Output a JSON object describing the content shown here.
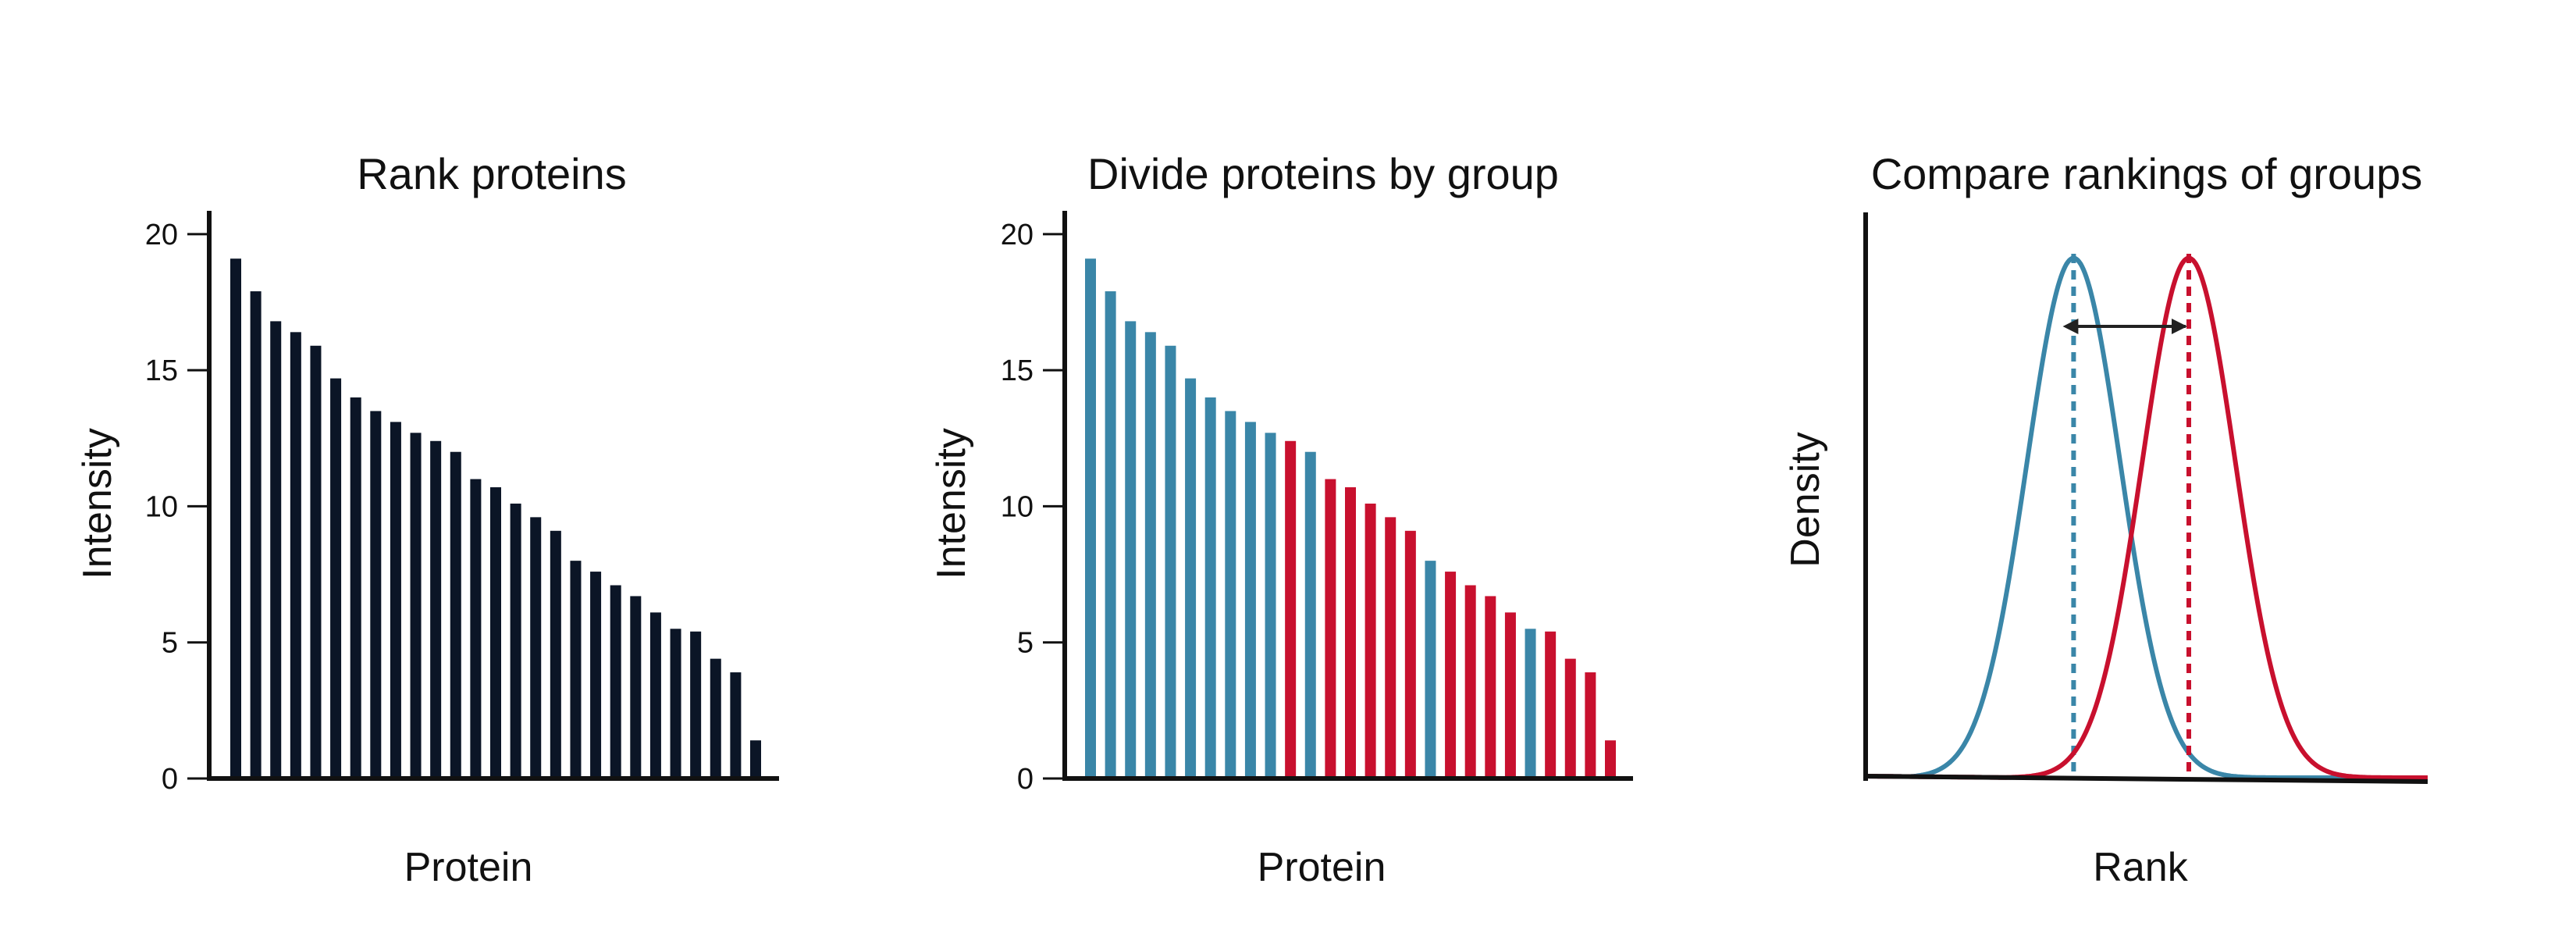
{
  "charts": [
    {
      "id": "rank",
      "title": "Rank proteins",
      "xlabel": "Protein",
      "ylabel": "Intensity",
      "color": "#0b1526"
    },
    {
      "id": "divide",
      "title": "Divide proteins by group",
      "xlabel": "Protein",
      "ylabel": "Intensity",
      "group_colors": {
        "A": "#3a86a8",
        "B": "#c8102e"
      }
    },
    {
      "id": "compare",
      "title": "Compare rankings of groups",
      "xlabel": "Rank",
      "ylabel": "Density",
      "group_colors": {
        "A": "#3a86a8",
        "B": "#c8102e"
      }
    }
  ],
  "chart_data": [
    {
      "type": "bar",
      "ylim": [
        0,
        21
      ],
      "yticks": [
        0,
        5,
        10,
        15,
        20
      ],
      "values": [
        19.1,
        17.9,
        16.8,
        16.4,
        15.9,
        14.7,
        14.0,
        13.5,
        13.1,
        12.7,
        12.4,
        12.0,
        11.0,
        10.7,
        10.1,
        9.6,
        9.1,
        8.0,
        7.6,
        7.1,
        6.7,
        6.1,
        5.5,
        5.4,
        4.4,
        3.9,
        1.4
      ],
      "grid": false
    },
    {
      "type": "bar",
      "ylim": [
        0,
        21
      ],
      "yticks": [
        0,
        5,
        10,
        15,
        20
      ],
      "values": [
        19.1,
        17.9,
        16.8,
        16.4,
        15.9,
        14.7,
        14.0,
        13.5,
        13.1,
        12.7,
        12.4,
        12.0,
        11.0,
        10.7,
        10.1,
        9.6,
        9.1,
        8.0,
        7.6,
        7.1,
        6.7,
        6.1,
        5.5,
        5.4,
        4.4,
        3.9,
        1.4
      ],
      "groups": [
        "A",
        "A",
        "A",
        "A",
        "A",
        "A",
        "A",
        "A",
        "A",
        "A",
        "B",
        "A",
        "B",
        "B",
        "B",
        "B",
        "B",
        "A",
        "B",
        "B",
        "B",
        "B",
        "A",
        "B",
        "B",
        "B",
        "B"
      ],
      "grid": false
    },
    {
      "type": "line",
      "series": [
        {
          "group": "A",
          "mean": 0.37,
          "sd": 0.083
        },
        {
          "group": "B",
          "mean": 0.575,
          "sd": 0.083
        }
      ],
      "xlim": [
        0,
        1
      ],
      "ylim": [
        0,
        1.1
      ],
      "grid": false
    }
  ]
}
